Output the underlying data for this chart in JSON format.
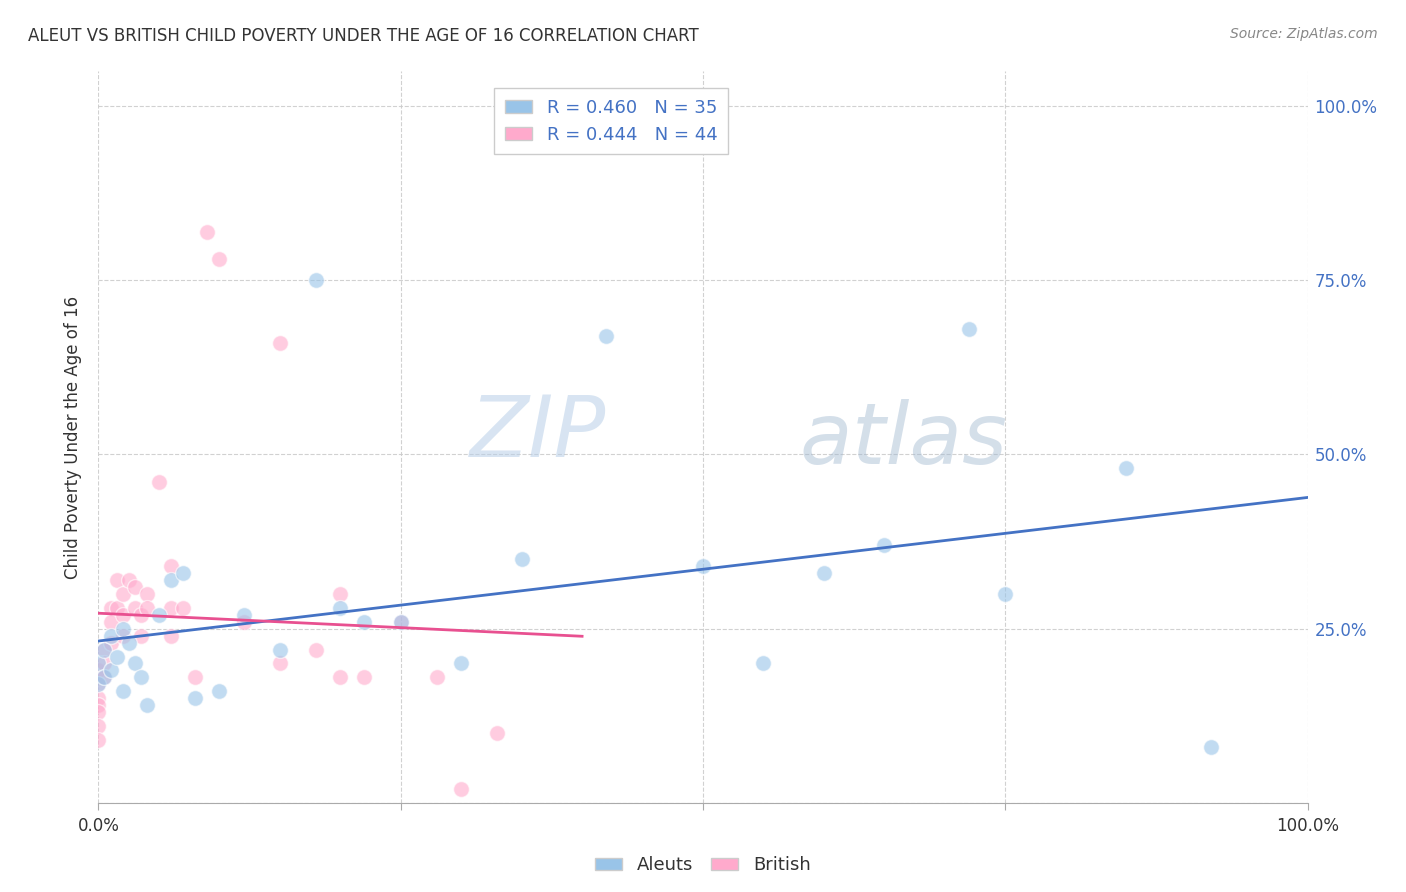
{
  "title": "ALEUT VS BRITISH CHILD POVERTY UNDER THE AGE OF 16 CORRELATION CHART",
  "source": "Source: ZipAtlas.com",
  "ylabel": "Child Poverty Under the Age of 16",
  "watermark_zip": "ZIP",
  "watermark_atlas": "atlas",
  "aleuts_x": [
    0.0,
    0.0,
    0.005,
    0.005,
    0.01,
    0.01,
    0.015,
    0.02,
    0.02,
    0.025,
    0.03,
    0.035,
    0.04,
    0.05,
    0.06,
    0.07,
    0.08,
    0.1,
    0.12,
    0.15,
    0.18,
    0.2,
    0.22,
    0.25,
    0.3,
    0.35,
    0.42,
    0.5,
    0.55,
    0.6,
    0.65,
    0.72,
    0.75,
    0.85,
    0.92
  ],
  "aleuts_y": [
    0.2,
    0.17,
    0.22,
    0.18,
    0.24,
    0.19,
    0.21,
    0.25,
    0.16,
    0.23,
    0.2,
    0.18,
    0.14,
    0.27,
    0.32,
    0.33,
    0.15,
    0.16,
    0.27,
    0.22,
    0.75,
    0.28,
    0.26,
    0.26,
    0.2,
    0.35,
    0.67,
    0.34,
    0.2,
    0.33,
    0.37,
    0.68,
    0.3,
    0.48,
    0.08
  ],
  "british_x": [
    0.0,
    0.0,
    0.0,
    0.0,
    0.0,
    0.0,
    0.0,
    0.005,
    0.005,
    0.005,
    0.01,
    0.01,
    0.01,
    0.015,
    0.015,
    0.02,
    0.02,
    0.02,
    0.025,
    0.03,
    0.03,
    0.035,
    0.035,
    0.04,
    0.04,
    0.05,
    0.06,
    0.06,
    0.06,
    0.07,
    0.08,
    0.09,
    0.1,
    0.12,
    0.15,
    0.15,
    0.18,
    0.2,
    0.2,
    0.22,
    0.25,
    0.28,
    0.3,
    0.33
  ],
  "british_y": [
    0.19,
    0.17,
    0.15,
    0.14,
    0.13,
    0.11,
    0.09,
    0.22,
    0.2,
    0.18,
    0.28,
    0.26,
    0.23,
    0.32,
    0.28,
    0.3,
    0.27,
    0.24,
    0.32,
    0.31,
    0.28,
    0.27,
    0.24,
    0.3,
    0.28,
    0.46,
    0.34,
    0.28,
    0.24,
    0.28,
    0.18,
    0.82,
    0.78,
    0.26,
    0.66,
    0.2,
    0.22,
    0.3,
    0.18,
    0.18,
    0.26,
    0.18,
    0.02,
    0.1
  ],
  "aleuts_color": "#99c4e8",
  "british_color": "#ffaacc",
  "aleuts_line_color": "#4472c4",
  "british_line_color": "#e85090",
  "xlim": [
    0.0,
    1.0
  ],
  "ylim": [
    0.0,
    1.05
  ],
  "marker_size": 130,
  "alpha": 0.6,
  "grid_color": "#cccccc",
  "text_color": "#333333",
  "label_color": "#4472c4"
}
